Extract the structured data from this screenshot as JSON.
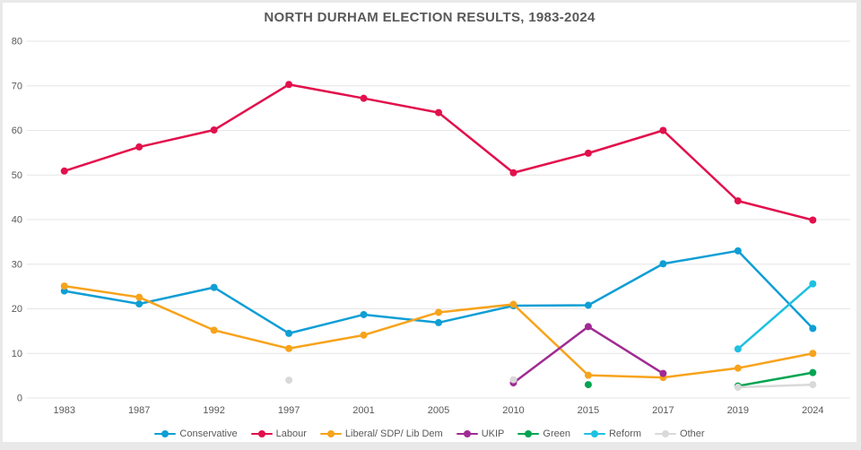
{
  "chart_data": {
    "type": "line",
    "title": "NORTH DURHAM ELECTION RESULTS, 1983-2024",
    "xlabel": "",
    "ylabel": "",
    "ylim": [
      0,
      80
    ],
    "yticks": [
      0,
      10,
      20,
      30,
      40,
      50,
      60,
      70,
      80
    ],
    "grid": true,
    "legend_position": "bottom",
    "marker_style": "filled-circle",
    "categories": [
      "1983",
      "1987",
      "1992",
      "1997",
      "2001",
      "2005",
      "2010",
      "2015",
      "2017",
      "2019",
      "2024"
    ],
    "series": [
      {
        "name": "Conservative",
        "color": "#0F9ED5",
        "values": [
          24.0,
          21.1,
          24.8,
          14.5,
          18.7,
          16.9,
          20.7,
          20.8,
          30.1,
          33.0,
          15.6
        ]
      },
      {
        "name": "Labour",
        "color": "#E2104C",
        "values": [
          50.9,
          56.3,
          60.1,
          70.3,
          67.2,
          64.0,
          50.5,
          54.9,
          60.0,
          44.2,
          39.9
        ]
      },
      {
        "name": "Liberal/ SDP/ Lib Dem",
        "color": "#F7A31B",
        "values": [
          25.1,
          22.6,
          15.2,
          11.1,
          14.1,
          19.2,
          21.0,
          5.1,
          4.6,
          6.7,
          10.0
        ]
      },
      {
        "name": "UKIP",
        "color": "#A02B93",
        "values": [
          null,
          null,
          null,
          null,
          null,
          null,
          3.4,
          16.0,
          5.5,
          null,
          null
        ]
      },
      {
        "name": "Green",
        "color": "#00A551",
        "values": [
          null,
          null,
          null,
          null,
          null,
          null,
          null,
          3.0,
          null,
          2.7,
          5.7
        ]
      },
      {
        "name": "Reform",
        "color": "#1EC1E0",
        "values": [
          null,
          null,
          null,
          null,
          null,
          null,
          null,
          null,
          null,
          11.0,
          25.6
        ]
      },
      {
        "name": "Other",
        "color": "#D9D9D9",
        "values": [
          null,
          null,
          null,
          4.0,
          null,
          null,
          4.1,
          null,
          null,
          2.4,
          3.0
        ]
      }
    ],
    "gridline_color": "#E6E6E6",
    "axis_label_color": "#595959",
    "title_color": "#595959"
  }
}
